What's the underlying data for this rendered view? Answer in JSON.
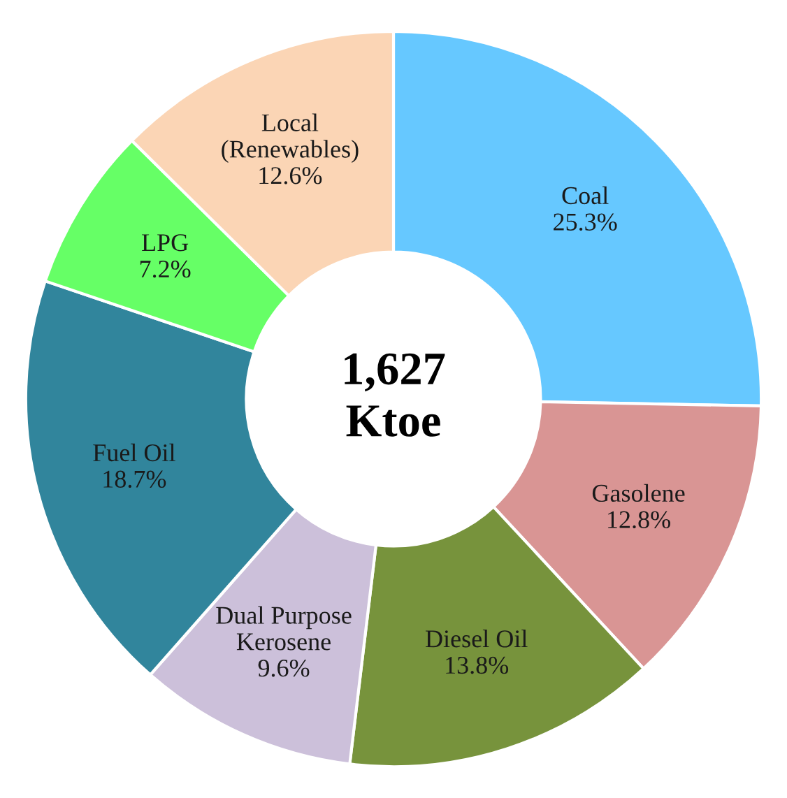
{
  "chart_data": {
    "type": "donut",
    "categories": [
      "Coal",
      "Gasolene",
      "Diesel Oil",
      "Dual Purpose\nKerosene",
      "Fuel Oil",
      "LPG",
      "Local\n(Renewables)"
    ],
    "values": [
      25.3,
      12.8,
      13.8,
      9.6,
      18.7,
      7.2,
      12.6
    ],
    "value_labels": [
      "25.3%",
      "12.8%",
      "13.8%",
      "9.6%",
      "18.7%",
      "7.2%",
      "12.6%"
    ],
    "colors": [
      "#66c8ff",
      "#d99594",
      "#77933c",
      "#ccc0da",
      "#31859c",
      "#66ff66",
      "#fbd5b5"
    ],
    "annotations": [
      "1,627\nKtoe"
    ],
    "legend": false
  }
}
